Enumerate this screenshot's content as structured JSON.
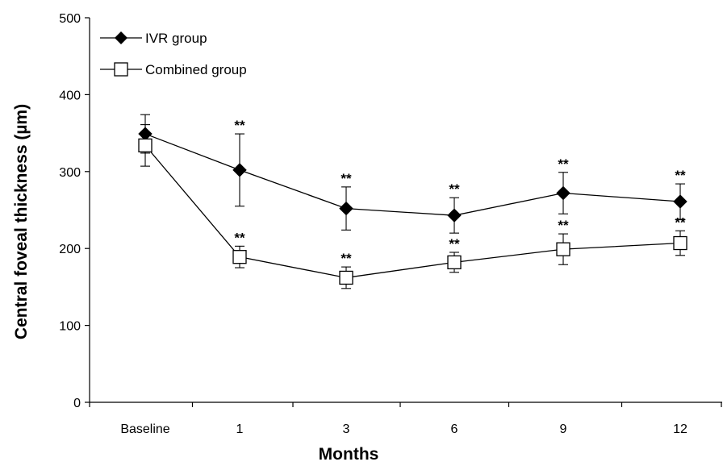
{
  "chart_data": {
    "type": "line",
    "xlabel": "Months",
    "ylabel": "Central foveal thickness (µm)",
    "categories": [
      "Baseline",
      "1",
      "3",
      "6",
      "9",
      "12"
    ],
    "ylim": [
      0,
      500
    ],
    "yticks": [
      "0",
      "100",
      "200",
      "300",
      "400",
      "500"
    ],
    "legend_position": "top-left",
    "grid": false,
    "series": [
      {
        "name": "IVR group",
        "marker": "filled-diamond",
        "color": "#000000",
        "values": [
          349,
          302,
          252,
          243,
          272,
          261
        ],
        "errors": [
          25,
          47,
          28,
          23,
          27,
          23
        ],
        "significance": [
          "",
          "**",
          "**",
          "**",
          "**",
          "**"
        ]
      },
      {
        "name": "Combined group",
        "marker": "open-square",
        "color": "#000000",
        "values": [
          334,
          189,
          162,
          182,
          199,
          207
        ],
        "errors": [
          27,
          14,
          14,
          13,
          20,
          16
        ],
        "significance": [
          "",
          "**",
          "**",
          "**",
          "**",
          "**"
        ]
      }
    ]
  }
}
